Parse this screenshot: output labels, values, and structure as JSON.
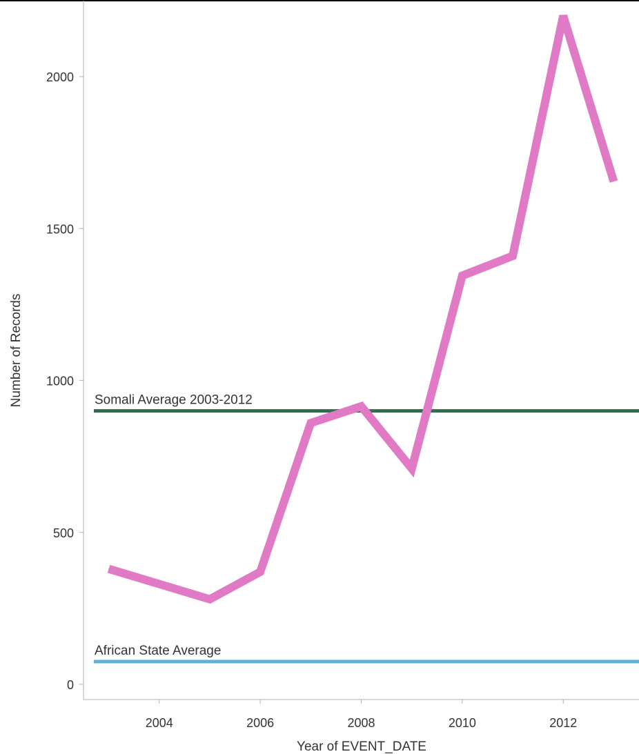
{
  "chart_data": {
    "type": "line",
    "xlabel": "Year of EVENT_DATE",
    "ylabel": "Number of Records",
    "xlim": [
      2002.5,
      2013.5
    ],
    "ylim": [
      -50,
      2250
    ],
    "x_ticks": [
      2004,
      2006,
      2008,
      2010,
      2012
    ],
    "y_ticks": [
      0,
      500,
      1000,
      1500,
      2000
    ],
    "grid": false,
    "legend": "none",
    "series": [
      {
        "color": "#e07ac4",
        "x": [
          2003,
          2004,
          2005,
          2006,
          2007,
          2008,
          2009,
          2010,
          2011,
          2012,
          2013
        ],
        "y": [
          380,
          330,
          280,
          370,
          860,
          915,
          710,
          1345,
          1410,
          2200,
          1655
        ]
      }
    ],
    "reference_lines": [
      {
        "label": "Somali Average 2003-2012",
        "y": 900,
        "color": "#2e6e4f"
      },
      {
        "label": "African State Average",
        "y": 75,
        "color": "#5fb0d6"
      }
    ]
  }
}
